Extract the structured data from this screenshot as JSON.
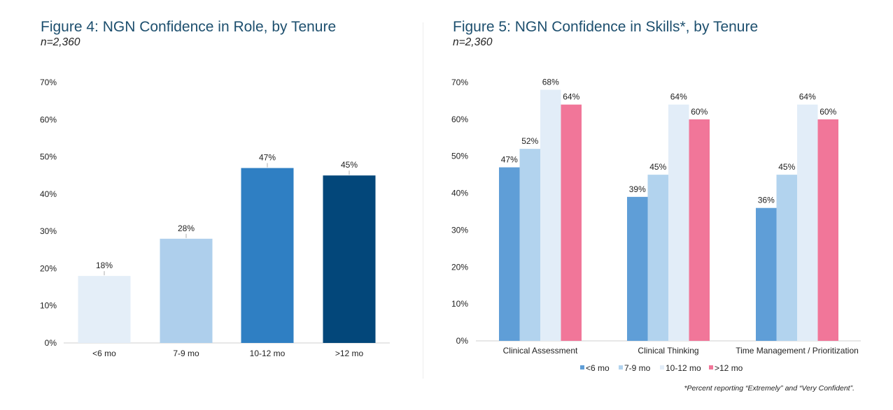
{
  "figure4": {
    "title": "Figure 4: NGN Confidence in Role, by Tenure",
    "subtitle": "n=2,360"
  },
  "figure5": {
    "title": "Figure 5: NGN Confidence in Skills*, by Tenure",
    "subtitle": "n=2,360",
    "footnote": "*Percent reporting “Extremely” and “Very Confident”."
  },
  "chart_data": [
    {
      "type": "bar",
      "title": "Figure 4: NGN Confidence in Role, by Tenure",
      "categories": [
        "<6 mo",
        "7-9 mo",
        "10-12 mo",
        ">12 mo"
      ],
      "values": [
        18,
        28,
        47,
        45
      ],
      "value_labels": [
        "18%",
        "28%",
        "47%",
        "45%"
      ],
      "colors": [
        "#e4eef8",
        "#aecfec",
        "#2f7fc3",
        "#03477a"
      ],
      "ylim": [
        0,
        70
      ],
      "yticks": [
        "0%",
        "10%",
        "20%",
        "30%",
        "40%",
        "50%",
        "60%",
        "70%"
      ],
      "grid": false,
      "legend": "none"
    },
    {
      "type": "bar",
      "title": "Figure 5: NGN Confidence in Skills*, by Tenure",
      "categories": [
        "Clinical Assessment",
        "Clinical Thinking",
        "Time Management / Prioritization"
      ],
      "series": [
        {
          "name": "<6 mo",
          "color": "#5f9ed7",
          "values": [
            47,
            39,
            36
          ],
          "labels": [
            "47%",
            "39%",
            "36%"
          ]
        },
        {
          "name": "7-9 mo",
          "color": "#b2d3ee",
          "values": [
            52,
            45,
            45
          ],
          "labels": [
            "52%",
            "45%",
            "45%"
          ]
        },
        {
          "name": "10-12 mo",
          "color": "#e2edf8",
          "values": [
            68,
            64,
            64
          ],
          "labels": [
            "68%",
            "64%",
            "64%"
          ]
        },
        {
          "name": ">12 mo",
          "color": "#f17699",
          "values": [
            64,
            60,
            60
          ],
          "labels": [
            "64%",
            "60%",
            "60%"
          ]
        }
      ],
      "ylim": [
        0,
        70
      ],
      "yticks": [
        "0%",
        "10%",
        "20%",
        "30%",
        "40%",
        "50%",
        "60%",
        "70%"
      ],
      "grid": false,
      "legend": "bottom"
    }
  ]
}
